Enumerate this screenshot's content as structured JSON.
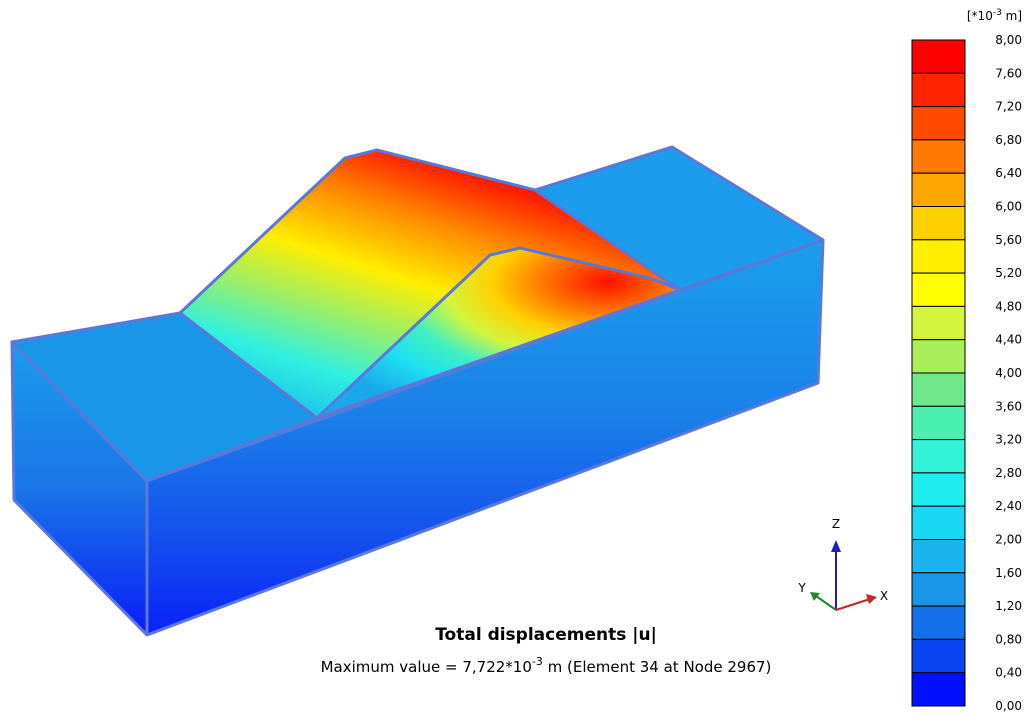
{
  "legend": {
    "unit": [
      "[*10",
      "-3",
      " m]"
    ],
    "labels": [
      "8,00",
      "7,60",
      "7,20",
      "6,80",
      "6,40",
      "6,00",
      "5,60",
      "5,20",
      "4,80",
      "4,40",
      "4,00",
      "3,60",
      "3,20",
      "2,80",
      "2,40",
      "2,00",
      "1,60",
      "1,20",
      "0,80",
      "0,40",
      "0,00"
    ],
    "colors": [
      "#ff0000",
      "#ff2400",
      "#ff4a00",
      "#ff7a00",
      "#ffa500",
      "#ffd000",
      "#ffee00",
      "#ffff00",
      "#d4f53c",
      "#a8ee5a",
      "#6ee88a",
      "#4af0b0",
      "#33f2d8",
      "#1eeef0",
      "#19d8f4",
      "#1cb4ee",
      "#1a96e8",
      "#1470e8",
      "#0a46f0",
      "#0010ff"
    ]
  },
  "title": "Total displacements |u|",
  "maximum": [
    "Maximum value = 7,722*10",
    "-3",
    " m (Element 34 at Node 2967)"
  ],
  "axes": {
    "z": "Z",
    "y": "Y",
    "x": "X"
  }
}
